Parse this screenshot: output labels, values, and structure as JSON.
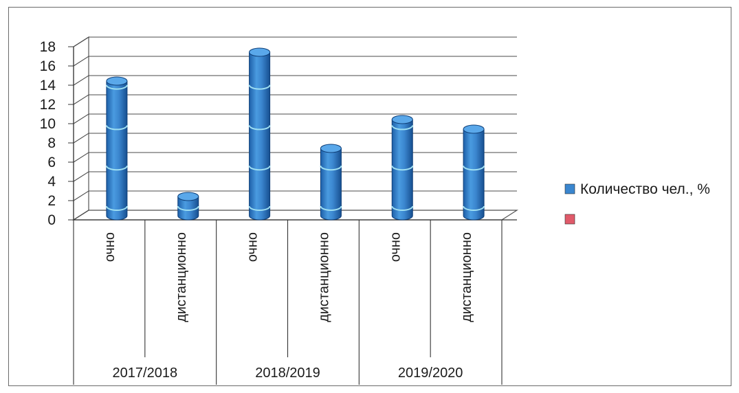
{
  "chart_data": {
    "type": "bar",
    "style": "3d-cylinder",
    "title": "",
    "xlabel": "",
    "ylabel": "",
    "ylim": [
      0,
      18
    ],
    "yticks": [
      0,
      2,
      4,
      6,
      8,
      10,
      12,
      14,
      16,
      18
    ],
    "grid": true,
    "legend_position": "right",
    "groups": [
      {
        "label": "2017/2018",
        "categories": [
          "очно",
          "дистанционно"
        ]
      },
      {
        "label": "2018/2019",
        "categories": [
          "очно",
          "дистанционно"
        ]
      },
      {
        "label": "2019/2020",
        "categories": [
          "очно",
          "дистанционно"
        ]
      }
    ],
    "series": [
      {
        "name": "Количество чел., %",
        "color": "#3a86cf",
        "values": [
          14,
          2,
          17,
          7,
          10,
          9
        ]
      },
      {
        "name": "",
        "color": "#e05a6a",
        "values": []
      }
    ]
  }
}
